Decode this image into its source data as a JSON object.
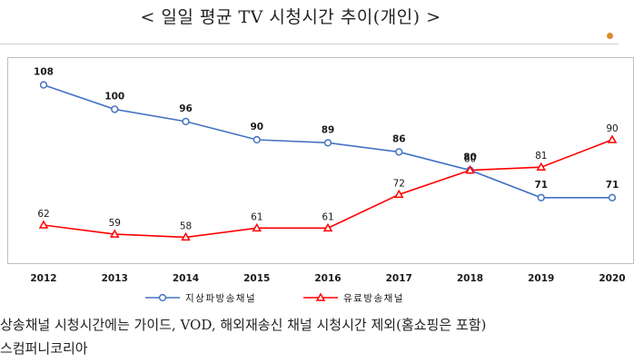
{
  "title": "< 일일 평균 TV 시청시간 추이(개인) >",
  "chart_data": {
    "type": "line",
    "categories": [
      "2012",
      "2013",
      "2014",
      "2015",
      "2016",
      "2017",
      "2018",
      "2019",
      "2020"
    ],
    "series": [
      {
        "name": "지상파방송채널",
        "color": "#4472c4",
        "marker": "circle",
        "values": [
          108,
          100,
          96,
          90,
          89,
          86,
          80,
          71,
          71
        ]
      },
      {
        "name": "유료방송채널",
        "color": "#ff0000",
        "marker": "triangle",
        "values": [
          62,
          59,
          58,
          61,
          61,
          72,
          80,
          81,
          90
        ]
      }
    ],
    "ylim": [
      48,
      118
    ],
    "grid": false,
    "legend_position": "bottom"
  },
  "notes": [
    "상송채널 시청시간에는 가이드, VOD, 해외재송신 채널 시청시간 제외(홈쇼핑은 포함)",
    "스컴퍼니코리아"
  ]
}
